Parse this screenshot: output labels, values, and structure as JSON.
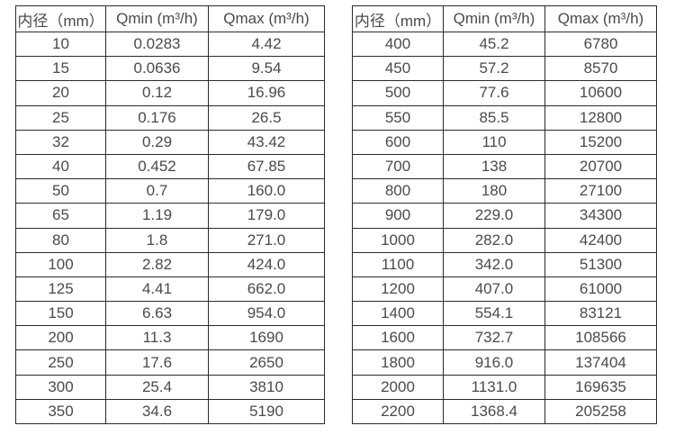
{
  "colors": {
    "background": "#ffffff",
    "border": "#2b2b2b",
    "text": "#4a4a4a"
  },
  "tables": [
    {
      "name": "flow-table-small-diameters",
      "headers": [
        "内径（mm）",
        "Qmin (m³/h)",
        "Qmax (m³/h)"
      ],
      "rows": [
        [
          "10",
          "0.0283",
          "4.42"
        ],
        [
          "15",
          "0.0636",
          "9.54"
        ],
        [
          "20",
          "0.12",
          "16.96"
        ],
        [
          "25",
          "0.176",
          "26.5"
        ],
        [
          "32",
          "0.29",
          "43.42"
        ],
        [
          "40",
          "0.452",
          "67.85"
        ],
        [
          "50",
          "0.7",
          "160.0"
        ],
        [
          "65",
          "1.19",
          "179.0"
        ],
        [
          "80",
          "1.8",
          "271.0"
        ],
        [
          "100",
          "2.82",
          "424.0"
        ],
        [
          "125",
          "4.41",
          "662.0"
        ],
        [
          "150",
          "6.63",
          "954.0"
        ],
        [
          "200",
          "11.3",
          "1690"
        ],
        [
          "250",
          "17.6",
          "2650"
        ],
        [
          "300",
          "25.4",
          "3810"
        ],
        [
          "350",
          "34.6",
          "5190"
        ]
      ]
    },
    {
      "name": "flow-table-large-diameters",
      "headers": [
        "内径（mm）",
        "Qmin (m³/h)",
        "Qmax (m³/h)"
      ],
      "rows": [
        [
          "400",
          "45.2",
          "6780"
        ],
        [
          "450",
          "57.2",
          "8570"
        ],
        [
          "500",
          "77.6",
          "10600"
        ],
        [
          "550",
          "85.5",
          "12800"
        ],
        [
          "600",
          "110",
          "15200"
        ],
        [
          "700",
          "138",
          "20700"
        ],
        [
          "800",
          "180",
          "27100"
        ],
        [
          "900",
          "229.0",
          "34300"
        ],
        [
          "1000",
          "282.0",
          "42400"
        ],
        [
          "1100",
          "342.0",
          "51300"
        ],
        [
          "1200",
          "407.0",
          "61000"
        ],
        [
          "1400",
          "554.1",
          "83121"
        ],
        [
          "1600",
          "732.7",
          "108566"
        ],
        [
          "1800",
          "916.0",
          "137404"
        ],
        [
          "2000",
          "1131.0",
          "169635"
        ],
        [
          "2200",
          "1368.4",
          "205258"
        ]
      ]
    }
  ]
}
